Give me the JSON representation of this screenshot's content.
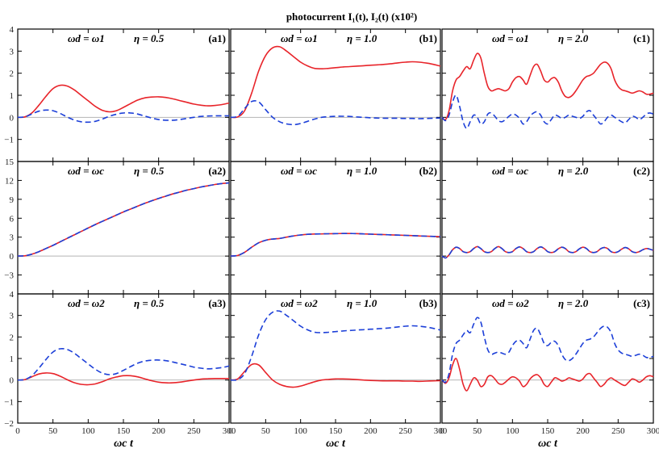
{
  "title": "photocurrent I₁(t), I₂(t) (x10²)",
  "chart_data": {
    "type": "line",
    "title": "photocurrent I₁(t), I₂(t) (x10²)",
    "xlabel": "ωc t",
    "xlim": [
      0,
      300
    ],
    "xticks": [
      0,
      50,
      100,
      150,
      200,
      250,
      300
    ],
    "series_styles": {
      "I1": {
        "color": "#e8242a",
        "dash": "solid"
      },
      "I2": {
        "color": "#1c3fd8",
        "dash": "dashed"
      }
    },
    "rows": [
      {
        "ylim": [
          -2,
          4
        ],
        "yticks": [
          -1,
          0,
          1,
          2,
          3,
          4
        ]
      },
      {
        "ylim": [
          -6,
          15
        ],
        "yticks": [
          -3,
          0,
          3,
          6,
          9,
          12,
          15
        ]
      },
      {
        "ylim": [
          -2,
          4
        ],
        "yticks": [
          -2,
          -1,
          0,
          1,
          2,
          3,
          4
        ]
      }
    ],
    "panels": [
      {
        "id": "(a1)",
        "row": 0,
        "col": 0,
        "label_wd": "ωd = ω1",
        "label_eta": "η = 0.5",
        "x": [
          0,
          10,
          20,
          30,
          40,
          50,
          60,
          70,
          80,
          90,
          100,
          110,
          120,
          130,
          140,
          150,
          160,
          170,
          180,
          190,
          200,
          210,
          220,
          230,
          240,
          250,
          260,
          270,
          280,
          290,
          300
        ],
        "I1": [
          0,
          0.02,
          0.2,
          0.55,
          0.95,
          1.3,
          1.45,
          1.42,
          1.25,
          1.0,
          0.75,
          0.5,
          0.32,
          0.25,
          0.3,
          0.45,
          0.62,
          0.78,
          0.88,
          0.92,
          0.93,
          0.9,
          0.84,
          0.76,
          0.68,
          0.6,
          0.55,
          0.52,
          0.54,
          0.58,
          0.65
        ],
        "I2": [
          0,
          0.02,
          0.15,
          0.28,
          0.33,
          0.3,
          0.18,
          0.02,
          -0.12,
          -0.2,
          -0.22,
          -0.18,
          -0.08,
          0.05,
          0.14,
          0.2,
          0.2,
          0.15,
          0.06,
          -0.03,
          -0.1,
          -0.13,
          -0.13,
          -0.1,
          -0.05,
          0,
          0.04,
          0.06,
          0.07,
          0.07,
          0.07
        ]
      },
      {
        "id": "(b1)",
        "row": 0,
        "col": 1,
        "label_wd": "ωd = ω1",
        "label_eta": "η = 1.0",
        "x": [
          0,
          10,
          20,
          30,
          40,
          50,
          60,
          70,
          80,
          90,
          100,
          110,
          120,
          130,
          140,
          150,
          160,
          170,
          180,
          190,
          200,
          210,
          220,
          230,
          240,
          250,
          260,
          270,
          280,
          290,
          300
        ],
        "I1": [
          0,
          0.02,
          0.3,
          1.1,
          2.1,
          2.8,
          3.15,
          3.2,
          3.0,
          2.75,
          2.5,
          2.33,
          2.22,
          2.2,
          2.22,
          2.25,
          2.28,
          2.3,
          2.32,
          2.34,
          2.36,
          2.38,
          2.4,
          2.43,
          2.47,
          2.5,
          2.52,
          2.5,
          2.46,
          2.4,
          2.32
        ],
        "I2": [
          0,
          0.05,
          0.4,
          0.72,
          0.7,
          0.35,
          0.0,
          -0.2,
          -0.3,
          -0.33,
          -0.28,
          -0.18,
          -0.08,
          0.0,
          0.03,
          0.05,
          0.05,
          0.04,
          0.02,
          0.0,
          -0.02,
          -0.03,
          -0.04,
          -0.04,
          -0.04,
          -0.05,
          -0.05,
          -0.06,
          -0.05,
          -0.04,
          -0.03
        ]
      },
      {
        "id": "(c1)",
        "row": 0,
        "col": 2,
        "label_wd": "ωd = ω1",
        "label_eta": "η = 2.0",
        "x": [
          0,
          5,
          10,
          15,
          20,
          25,
          30,
          35,
          40,
          45,
          50,
          55,
          60,
          65,
          70,
          75,
          80,
          85,
          90,
          95,
          100,
          105,
          110,
          115,
          120,
          125,
          130,
          135,
          140,
          145,
          150,
          155,
          160,
          165,
          170,
          175,
          180,
          185,
          190,
          195,
          200,
          205,
          210,
          215,
          220,
          225,
          230,
          235,
          240,
          245,
          250,
          255,
          260,
          265,
          270,
          275,
          280,
          285,
          290,
          295,
          300
        ],
        "I1": [
          0,
          -0.1,
          0.3,
          1.2,
          1.7,
          1.85,
          2.1,
          2.3,
          2.2,
          2.6,
          2.9,
          2.7,
          2.0,
          1.4,
          1.2,
          1.25,
          1.3,
          1.25,
          1.2,
          1.3,
          1.6,
          1.8,
          1.85,
          1.7,
          1.5,
          1.9,
          2.3,
          2.4,
          2.1,
          1.7,
          1.6,
          1.75,
          1.8,
          1.6,
          1.2,
          0.95,
          0.9,
          1.0,
          1.2,
          1.45,
          1.7,
          1.85,
          1.9,
          2.0,
          2.2,
          2.4,
          2.5,
          2.45,
          2.2,
          1.7,
          1.4,
          1.25,
          1.2,
          1.15,
          1.1,
          1.15,
          1.2,
          1.15,
          1.05,
          1.05,
          1.1
        ],
        "I2": [
          0,
          -0.15,
          0.1,
          0.7,
          1.0,
          0.5,
          -0.2,
          -0.5,
          -0.2,
          0.1,
          0.0,
          -0.3,
          -0.2,
          0.15,
          0.2,
          0.05,
          -0.15,
          -0.2,
          -0.1,
          0.05,
          0.15,
          0.1,
          -0.05,
          -0.3,
          -0.2,
          0.05,
          0.2,
          0.25,
          0.1,
          -0.2,
          -0.3,
          -0.1,
          0.1,
          0.05,
          -0.05,
          0.0,
          0.1,
          0.05,
          0.0,
          -0.05,
          0.05,
          0.25,
          0.3,
          0.1,
          -0.1,
          -0.3,
          -0.2,
          0.0,
          0.1,
          0.0,
          -0.1,
          -0.2,
          -0.25,
          -0.1,
          0.05,
          0.0,
          -0.1,
          0.0,
          0.15,
          0.2,
          0.15
        ]
      },
      {
        "id": "(a2)",
        "row": 1,
        "col": 0,
        "label_wd": "ωd = ωc",
        "label_eta": "η = 0.5",
        "x": [
          0,
          10,
          20,
          30,
          40,
          50,
          60,
          70,
          80,
          90,
          100,
          110,
          120,
          130,
          140,
          150,
          160,
          170,
          180,
          190,
          200,
          210,
          220,
          230,
          240,
          250,
          260,
          270,
          280,
          290,
          300
        ],
        "I1": [
          0,
          0.05,
          0.3,
          0.7,
          1.2,
          1.7,
          2.25,
          2.8,
          3.35,
          3.9,
          4.45,
          5.0,
          5.5,
          6.0,
          6.5,
          7.0,
          7.45,
          7.9,
          8.35,
          8.75,
          9.15,
          9.5,
          9.85,
          10.15,
          10.45,
          10.7,
          10.95,
          11.15,
          11.35,
          11.5,
          11.6
        ],
        "I2": [
          0,
          0.05,
          0.3,
          0.7,
          1.2,
          1.7,
          2.25,
          2.8,
          3.35,
          3.9,
          4.45,
          5.0,
          5.5,
          6.0,
          6.5,
          7.0,
          7.45,
          7.9,
          8.35,
          8.75,
          9.15,
          9.5,
          9.85,
          10.15,
          10.45,
          10.7,
          10.95,
          11.15,
          11.35,
          11.5,
          11.6
        ]
      },
      {
        "id": "(b2)",
        "row": 1,
        "col": 1,
        "label_wd": "ωd = ωc",
        "label_eta": "η = 1.0",
        "x": [
          0,
          10,
          20,
          30,
          40,
          50,
          60,
          70,
          80,
          90,
          100,
          110,
          120,
          130,
          140,
          150,
          160,
          170,
          180,
          190,
          200,
          210,
          220,
          230,
          240,
          250,
          260,
          270,
          280,
          290,
          300
        ],
        "I1": [
          0,
          0.1,
          0.6,
          1.4,
          2.1,
          2.5,
          2.7,
          2.8,
          3.0,
          3.2,
          3.35,
          3.45,
          3.5,
          3.52,
          3.54,
          3.56,
          3.58,
          3.58,
          3.56,
          3.52,
          3.48,
          3.44,
          3.4,
          3.36,
          3.32,
          3.28,
          3.24,
          3.2,
          3.16,
          3.12,
          3.08
        ],
        "I2": [
          0,
          0.1,
          0.6,
          1.4,
          2.1,
          2.5,
          2.7,
          2.8,
          3.0,
          3.2,
          3.35,
          3.45,
          3.5,
          3.52,
          3.54,
          3.56,
          3.58,
          3.58,
          3.56,
          3.52,
          3.48,
          3.44,
          3.4,
          3.36,
          3.32,
          3.28,
          3.24,
          3.2,
          3.16,
          3.12,
          3.08
        ]
      },
      {
        "id": "(c2)",
        "row": 1,
        "col": 2,
        "label_wd": "ωd = ωc",
        "label_eta": "η = 2.0",
        "x": [
          0,
          5,
          10,
          15,
          20,
          25,
          30,
          35,
          40,
          45,
          50,
          55,
          60,
          65,
          70,
          75,
          80,
          85,
          90,
          95,
          100,
          105,
          110,
          115,
          120,
          125,
          130,
          135,
          140,
          145,
          150,
          155,
          160,
          165,
          170,
          175,
          180,
          185,
          190,
          195,
          200,
          205,
          210,
          215,
          220,
          225,
          230,
          235,
          240,
          245,
          250,
          255,
          260,
          265,
          270,
          275,
          280,
          285,
          290,
          295,
          300
        ],
        "I1": [
          0,
          -0.3,
          0.2,
          1.0,
          1.4,
          1.2,
          0.7,
          0.55,
          0.7,
          1.2,
          1.5,
          1.2,
          0.7,
          0.55,
          0.7,
          1.2,
          1.5,
          1.2,
          0.7,
          0.55,
          0.7,
          1.2,
          1.45,
          1.2,
          0.7,
          0.55,
          0.7,
          1.2,
          1.45,
          1.2,
          0.7,
          0.55,
          0.7,
          1.15,
          1.4,
          1.2,
          0.7,
          0.55,
          0.7,
          1.15,
          1.4,
          1.2,
          0.7,
          0.55,
          0.7,
          1.15,
          1.35,
          1.2,
          0.7,
          0.55,
          0.7,
          1.1,
          1.35,
          1.15,
          0.7,
          0.55,
          0.7,
          1.0,
          1.2,
          1.1,
          0.9
        ],
        "I2": [
          0,
          -0.3,
          0.2,
          1.0,
          1.4,
          1.2,
          0.7,
          0.55,
          0.7,
          1.2,
          1.5,
          1.2,
          0.7,
          0.55,
          0.7,
          1.2,
          1.5,
          1.2,
          0.7,
          0.55,
          0.7,
          1.2,
          1.45,
          1.2,
          0.7,
          0.55,
          0.7,
          1.2,
          1.45,
          1.2,
          0.7,
          0.55,
          0.7,
          1.15,
          1.4,
          1.2,
          0.7,
          0.55,
          0.7,
          1.15,
          1.4,
          1.2,
          0.7,
          0.55,
          0.7,
          1.15,
          1.35,
          1.2,
          0.7,
          0.55,
          0.7,
          1.1,
          1.35,
          1.15,
          0.7,
          0.55,
          0.7,
          1.0,
          1.2,
          1.1,
          0.9
        ]
      },
      {
        "id": "(a3)",
        "row": 2,
        "col": 0,
        "label_wd": "ωd = ω2",
        "label_eta": "η = 0.5",
        "x": [
          0,
          10,
          20,
          30,
          40,
          50,
          60,
          70,
          80,
          90,
          100,
          110,
          120,
          130,
          140,
          150,
          160,
          170,
          180,
          190,
          200,
          210,
          220,
          230,
          240,
          250,
          260,
          270,
          280,
          290,
          300
        ],
        "I1": [
          0,
          0.02,
          0.15,
          0.28,
          0.33,
          0.3,
          0.18,
          0.02,
          -0.12,
          -0.2,
          -0.22,
          -0.18,
          -0.08,
          0.05,
          0.14,
          0.2,
          0.2,
          0.15,
          0.06,
          -0.03,
          -0.1,
          -0.13,
          -0.13,
          -0.1,
          -0.05,
          0,
          0.04,
          0.06,
          0.07,
          0.07,
          0.07
        ],
        "I2": [
          0,
          0.02,
          0.2,
          0.55,
          0.95,
          1.3,
          1.45,
          1.42,
          1.25,
          1.0,
          0.75,
          0.5,
          0.32,
          0.25,
          0.3,
          0.45,
          0.62,
          0.78,
          0.88,
          0.92,
          0.93,
          0.9,
          0.84,
          0.76,
          0.68,
          0.6,
          0.55,
          0.52,
          0.54,
          0.58,
          0.65
        ]
      },
      {
        "id": "(b3)",
        "row": 2,
        "col": 1,
        "label_wd": "ωd = ω2",
        "label_eta": "η = 1.0",
        "x": [
          0,
          10,
          20,
          30,
          40,
          50,
          60,
          70,
          80,
          90,
          100,
          110,
          120,
          130,
          140,
          150,
          160,
          170,
          180,
          190,
          200,
          210,
          220,
          230,
          240,
          250,
          260,
          270,
          280,
          290,
          300
        ],
        "I1": [
          0,
          0.05,
          0.4,
          0.72,
          0.7,
          0.35,
          0.0,
          -0.2,
          -0.3,
          -0.33,
          -0.28,
          -0.18,
          -0.08,
          0.0,
          0.03,
          0.05,
          0.05,
          0.04,
          0.02,
          0.0,
          -0.02,
          -0.03,
          -0.04,
          -0.04,
          -0.04,
          -0.05,
          -0.05,
          -0.06,
          -0.05,
          -0.04,
          -0.03
        ],
        "I2": [
          0,
          0.02,
          0.3,
          1.1,
          2.1,
          2.8,
          3.15,
          3.2,
          3.0,
          2.75,
          2.5,
          2.33,
          2.22,
          2.2,
          2.22,
          2.25,
          2.28,
          2.3,
          2.32,
          2.34,
          2.36,
          2.38,
          2.4,
          2.43,
          2.47,
          2.5,
          2.52,
          2.5,
          2.46,
          2.4,
          2.32
        ]
      },
      {
        "id": "(c3)",
        "row": 2,
        "col": 2,
        "label_wd": "ωd = ω2",
        "label_eta": "η = 2.0",
        "x": [
          0,
          5,
          10,
          15,
          20,
          25,
          30,
          35,
          40,
          45,
          50,
          55,
          60,
          65,
          70,
          75,
          80,
          85,
          90,
          95,
          100,
          105,
          110,
          115,
          120,
          125,
          130,
          135,
          140,
          145,
          150,
          155,
          160,
          165,
          170,
          175,
          180,
          185,
          190,
          195,
          200,
          205,
          210,
          215,
          220,
          225,
          230,
          235,
          240,
          245,
          250,
          255,
          260,
          265,
          270,
          275,
          280,
          285,
          290,
          295,
          300
        ],
        "I1": [
          0,
          -0.15,
          0.1,
          0.7,
          1.0,
          0.5,
          -0.2,
          -0.5,
          -0.2,
          0.1,
          0.0,
          -0.3,
          -0.2,
          0.15,
          0.2,
          0.05,
          -0.15,
          -0.2,
          -0.1,
          0.05,
          0.15,
          0.1,
          -0.05,
          -0.3,
          -0.2,
          0.05,
          0.2,
          0.25,
          0.1,
          -0.2,
          -0.3,
          -0.1,
          0.1,
          0.05,
          -0.05,
          0.0,
          0.1,
          0.05,
          0.0,
          -0.05,
          0.05,
          0.25,
          0.3,
          0.1,
          -0.1,
          -0.3,
          -0.2,
          0.0,
          0.1,
          0.0,
          -0.1,
          -0.2,
          -0.25,
          -0.1,
          0.05,
          0.0,
          -0.1,
          0.0,
          0.15,
          0.2,
          0.15
        ],
        "I2": [
          0,
          -0.1,
          0.3,
          1.2,
          1.7,
          1.85,
          2.1,
          2.3,
          2.2,
          2.6,
          2.9,
          2.7,
          2.0,
          1.4,
          1.2,
          1.25,
          1.3,
          1.25,
          1.2,
          1.3,
          1.6,
          1.8,
          1.85,
          1.7,
          1.5,
          1.9,
          2.3,
          2.4,
          2.1,
          1.7,
          1.6,
          1.75,
          1.8,
          1.6,
          1.2,
          0.95,
          0.9,
          1.0,
          1.2,
          1.45,
          1.7,
          1.85,
          1.9,
          2.0,
          2.2,
          2.4,
          2.5,
          2.45,
          2.2,
          1.7,
          1.4,
          1.25,
          1.2,
          1.15,
          1.1,
          1.15,
          1.2,
          1.15,
          1.05,
          1.05,
          1.1
        ]
      }
    ]
  }
}
